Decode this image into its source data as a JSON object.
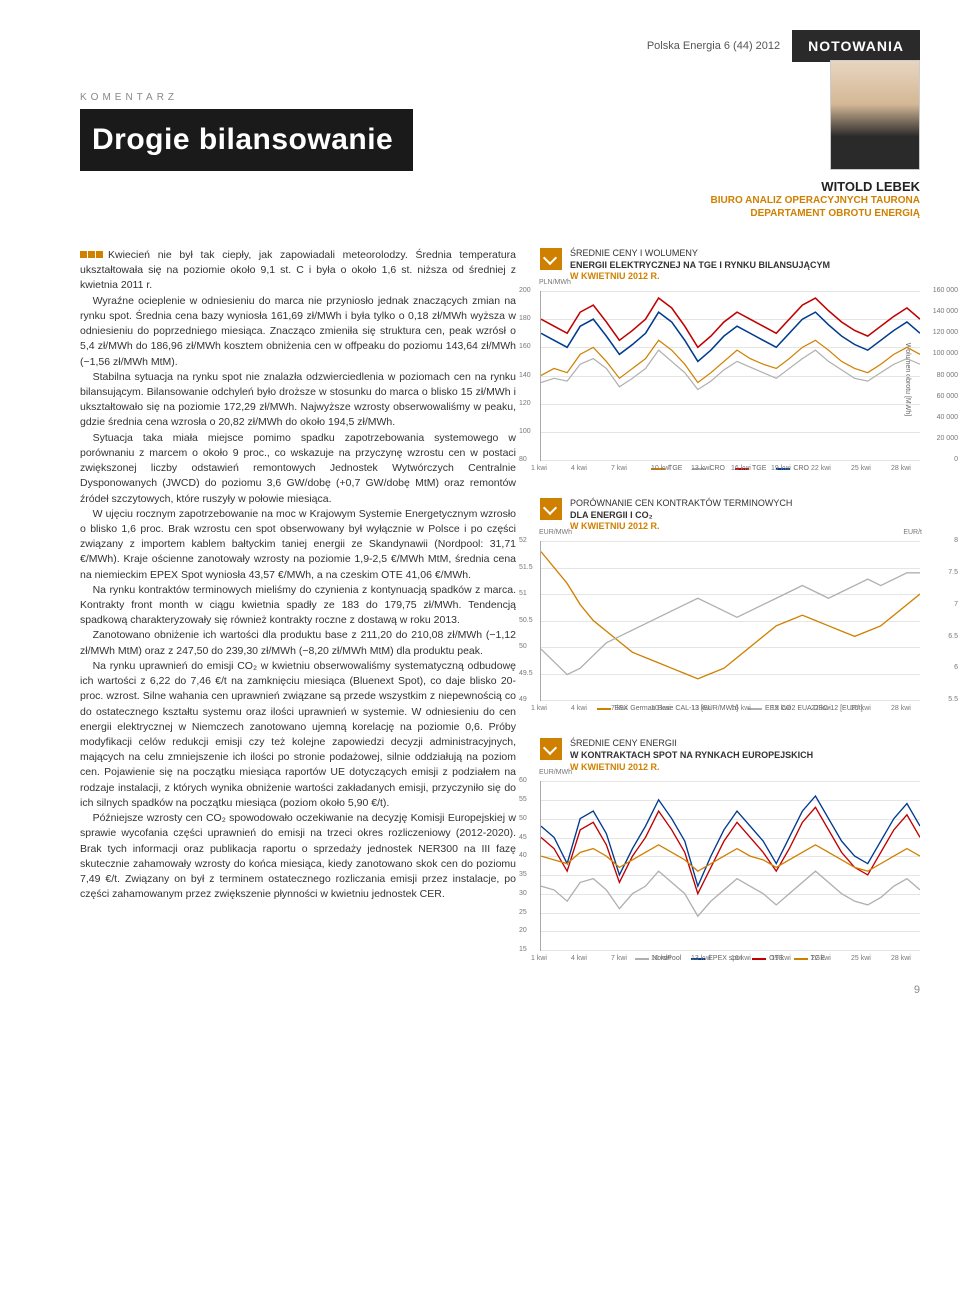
{
  "issue": "Polska Energia 6 (44) 2012",
  "section_tag": "NOTOWANIA",
  "kicker": "KOMENTARZ",
  "title": "Drogie bilansowanie",
  "author": {
    "name": "WITOLD LEBEK",
    "dept1": "BIURO ANALIZ OPERACYJNYCH TAURONA",
    "dept2": "DEPARTAMENT OBROTU ENERGIĄ"
  },
  "body": [
    "Kwiecień nie był tak ciepły, jak zapowiadali meteorolodzy. Średnia temperatura ukształtowała się na poziomie około 9,1 st. C i była o około 1,6 st. niższa od średniej z kwietnia 2011 r.",
    "Wyraźne ocieplenie w odniesieniu do marca nie przyniosło jednak znaczących zmian na rynku spot. Średnia cena bazy wyniosła 161,69 zł/MWh i była tylko o 0,18 zł/MWh wyższa w odniesieniu do poprzedniego miesiąca. Znacząco zmieniła się struktura cen, peak wzrósł o 5,4 zł/MWh do 186,96 zł/MWh kosztem obniżenia cen w offpeaku do poziomu 143,64 zł/MWh (−1,56 zł/MWh MtM).",
    "Stabilna sytuacja na rynku spot nie znalazła odzwierciedlenia w poziomach cen na rynku bilansującym. Bilansowanie odchyleń było droższe w stosunku do marca o blisko 15 zł/MWh i ukształtowało się na poziomie 172,29 zł/MWh. Najwyższe wzrosty obserwowaliśmy w peaku, gdzie średnia cena wzrosła o 20,82 zł/MWh do około 194,5 zł/MWh.",
    "Sytuacja taka miała miejsce pomimo spadku zapotrzebowania systemowego w porównaniu z marcem o około 9 proc., co wskazuje na przyczynę wzrostu cen w postaci zwiększonej liczby odstawień remontowych Jednostek Wytwórczych Centralnie Dysponowanych (JWCD) do poziomu 3,6 GW/dobę (+0,7 GW/dobę MtM) oraz remontów źródeł szczytowych, które ruszyły w połowie miesiąca.",
    "W ujęciu rocznym zapotrzebowanie na moc w Krajowym Systemie Energetycznym wzrosło o blisko 1,6 proc. Brak wzrostu cen spot obserwowany był wyłącznie w Polsce i po części związany z importem kablem bałtyckim taniej energii ze Skandynawii (Nordpool: 31,71 €/MWh). Kraje ościenne zanotowały wzrosty na poziomie 1,9-2,5 €/MWh MtM, średnia cena na niemieckim EPEX Spot wyniosła 43,57 €/MWh, a na czeskim OTE 41,06 €/MWh.",
    "Na rynku kontraktów terminowych mieliśmy do czynienia z kontynuacją spadków z marca. Kontrakty front month w ciągu kwietnia spadły ze 183 do 179,75 zł/MWh. Tendencją spadkową charakteryzowały się również kontrakty roczne z dostawą w roku 2013.",
    "Zanotowano obniżenie ich wartości dla produktu base z 211,20 do 210,08 zł/MWh (−1,12 zł/MWh MtM) oraz z 247,50 do 239,30 zł/MWh (−8,20 zł/MWh MtM) dla produktu peak.",
    "Na rynku uprawnień do emisji CO₂ w kwietniu obserwowaliśmy systematyczną odbudowę ich wartości z 6,22 do 7,46 €/t na zamknięciu miesiąca (Bluenext Spot), co daje blisko 20-proc. wzrost. Silne wahania cen uprawnień związane są przede wszystkim z niepewnością co do ostatecznego kształtu systemu oraz ilości uprawnień w systemie. W odniesieniu do cen energii elektrycznej w Niemczech zanotowano ujemną korelację na poziomie 0,6. Próby modyfikacji celów redukcji emisji czy też kolejne zapowiedzi decyzji administracyjnych, mających na celu zmniejszenie ich ilości po stronie podażowej, silnie oddziałują na poziom cen. Pojawienie się na początku miesiąca raportów UE dotyczących emisji z podziałem na rodzaje instalacji, z których wynika obniżenie wartości zakładanych emisji, przyczyniło się do ich silnych spadków na początku miesiąca (poziom około 5,90 €/t).",
    "Późniejsze wzrosty cen CO₂ spowodowało oczekiwanie na decyzję Komisji Europejskiej w sprawie wycofania części uprawnień do emisji na trzeci okres rozliczeniowy (2012-2020). Brak tych informacji oraz publikacja raportu o sprzedaży jednostek NER300 na III fazę skutecznie zahamowały wzrosty do końca miesiąca, kiedy zanotowano skok cen do poziomu 7,49 €/t. Związany on był z terminem ostatecznego rozliczania emisji przez instalacje, po części zahamowanym przez zwiększenie płynności w kwietniu jednostek CER."
  ],
  "charts": {
    "c1": {
      "title_pre": "ŚREDNIE CENY I WOLUMENY",
      "title_bold": "ENERGII ELEKTRYCZNEJ NA TGE I RYNKU BILANSUJĄCYM",
      "title_sub": "W KWIETNIU 2012 R.",
      "y_left_unit": "PLN/MWh",
      "y_right_label": "Wolumen obrotu [MWh]",
      "y_left": {
        "min": 80,
        "max": 200,
        "step": 20
      },
      "y_right": {
        "min": 0,
        "max": 160000,
        "step": 20000
      },
      "x_labels": [
        "1 kwi",
        "4 kwi",
        "7 kwi",
        "10 kwi",
        "13 kwi",
        "16 kwi",
        "19 kwi",
        "22 kwi",
        "25 kwi",
        "28 kwi"
      ],
      "legend": [
        {
          "label": "TGE",
          "color": "#d08000"
        },
        {
          "label": "CRO",
          "color": "#b0b0b0"
        },
        {
          "label": "TGE",
          "color": "#c00000"
        },
        {
          "label": "CRO",
          "color": "#003b8e"
        }
      ],
      "series": [
        {
          "color": "#c00000",
          "width": 1.5,
          "data": [
            180,
            175,
            170,
            185,
            190,
            178,
            165,
            172,
            180,
            195,
            188,
            175,
            160,
            168,
            178,
            185,
            180,
            175,
            170,
            180,
            190,
            195,
            186,
            178,
            172,
            168,
            175,
            182,
            188,
            180
          ]
        },
        {
          "color": "#003b8e",
          "width": 1.5,
          "data": [
            170,
            165,
            160,
            175,
            180,
            168,
            155,
            162,
            170,
            185,
            178,
            165,
            150,
            158,
            168,
            175,
            170,
            165,
            160,
            170,
            180,
            185,
            176,
            168,
            162,
            158,
            165,
            172,
            178,
            170
          ]
        },
        {
          "color": "#d08000",
          "width": 1.2,
          "data": [
            140,
            145,
            142,
            155,
            160,
            150,
            138,
            145,
            152,
            165,
            158,
            148,
            135,
            142,
            150,
            158,
            152,
            148,
            145,
            152,
            160,
            165,
            158,
            150,
            145,
            142,
            148,
            155,
            160,
            155
          ]
        },
        {
          "color": "#b0b0b0",
          "width": 1.2,
          "data": [
            135,
            138,
            136,
            148,
            152,
            145,
            132,
            138,
            145,
            158,
            150,
            142,
            130,
            136,
            144,
            150,
            146,
            142,
            138,
            145,
            152,
            158,
            150,
            144,
            138,
            136,
            142,
            148,
            152,
            148
          ]
        }
      ]
    },
    "c2": {
      "title_pre": "PORÓWNANIE CEN KONTRAKTÓW TERMINOWYCH",
      "title_bold": "DLA ENERGII I CO₂",
      "title_sub": "W KWIETNIU 2012 R.",
      "y_left_unit": "EUR/MWh",
      "y_right_unit": "EUR/t",
      "y_left": {
        "min": 49.0,
        "max": 52.0,
        "step": 0.5
      },
      "y_right": {
        "min": 5.5,
        "max": 8.0,
        "step": 0.5
      },
      "x_labels": [
        "1 kwi",
        "4 kwi",
        "7 kwi",
        "10 kwi",
        "13 kwi",
        "16 kwi",
        "19 kwi",
        "22 kwi",
        "25 kwi",
        "28 kwi"
      ],
      "legend": [
        {
          "label": "EEX German Base CAL-13 [EUR/MWh]",
          "color": "#d08000"
        },
        {
          "label": "EEX CO2 EUA DEC-12 [EUR/t]",
          "color": "#b0b0b0"
        }
      ],
      "series": [
        {
          "color": "#d08000",
          "width": 1.3,
          "axis": "left",
          "data": [
            51.8,
            51.5,
            51.2,
            50.8,
            50.5,
            50.3,
            50.1,
            49.9,
            49.8,
            49.7,
            49.6,
            49.5,
            49.4,
            49.5,
            49.6,
            49.8,
            50.0,
            50.2,
            50.4,
            50.5,
            50.6,
            50.5,
            50.4,
            50.3,
            50.2,
            50.3,
            50.4,
            50.6,
            50.8,
            51.0
          ]
        },
        {
          "color": "#b0b0b0",
          "width": 1.3,
          "axis": "right",
          "data": [
            6.3,
            6.1,
            5.9,
            6.0,
            6.2,
            6.4,
            6.5,
            6.6,
            6.7,
            6.8,
            6.9,
            7.0,
            7.1,
            7.0,
            6.9,
            6.8,
            6.9,
            7.0,
            7.1,
            7.2,
            7.3,
            7.2,
            7.1,
            7.2,
            7.3,
            7.4,
            7.3,
            7.4,
            7.5,
            7.5
          ]
        }
      ]
    },
    "c3": {
      "title_pre": "ŚREDNIE CENY ENERGII",
      "title_bold": "W KONTRAKTACH SPOT NA RYNKACH EUROPEJSKICH",
      "title_sub": "W KWIETNIU 2012 R.",
      "y_left_unit": "EUR/MWh",
      "y_left": {
        "min": 15,
        "max": 60,
        "step": 5
      },
      "x_labels": [
        "1 kwi",
        "4 kwi",
        "7 kwi",
        "10 kwi",
        "13 kwi",
        "16 kwi",
        "19 kwi",
        "22 kwi",
        "25 kwi",
        "28 kwi"
      ],
      "legend": [
        {
          "label": "NordPool",
          "color": "#b0b0b0"
        },
        {
          "label": "EPEX spot",
          "color": "#003b8e"
        },
        {
          "label": "OTE",
          "color": "#c00000"
        },
        {
          "label": "TGE",
          "color": "#d08000"
        }
      ],
      "series": [
        {
          "color": "#003b8e",
          "width": 1.3,
          "data": [
            48,
            45,
            38,
            50,
            52,
            46,
            35,
            42,
            48,
            55,
            50,
            44,
            32,
            40,
            47,
            52,
            48,
            44,
            38,
            45,
            52,
            56,
            50,
            44,
            40,
            38,
            44,
            50,
            54,
            48
          ]
        },
        {
          "color": "#c00000",
          "width": 1.3,
          "data": [
            45,
            42,
            36,
            47,
            49,
            43,
            33,
            40,
            45,
            52,
            47,
            41,
            30,
            37,
            44,
            49,
            45,
            41,
            36,
            42,
            49,
            53,
            47,
            41,
            37,
            35,
            41,
            47,
            51,
            45
          ]
        },
        {
          "color": "#d08000",
          "width": 1.3,
          "data": [
            40,
            39,
            38,
            41,
            42,
            40,
            37,
            39,
            41,
            43,
            41,
            39,
            36,
            38,
            40,
            42,
            40,
            39,
            37,
            39,
            41,
            43,
            41,
            39,
            37,
            36,
            38,
            40,
            42,
            40
          ]
        },
        {
          "color": "#b0b0b0",
          "width": 1.3,
          "data": [
            32,
            31,
            28,
            33,
            34,
            31,
            26,
            30,
            32,
            36,
            33,
            30,
            24,
            28,
            31,
            34,
            32,
            30,
            27,
            30,
            33,
            36,
            33,
            30,
            28,
            27,
            29,
            32,
            34,
            31
          ]
        }
      ]
    }
  },
  "page_number": "9"
}
